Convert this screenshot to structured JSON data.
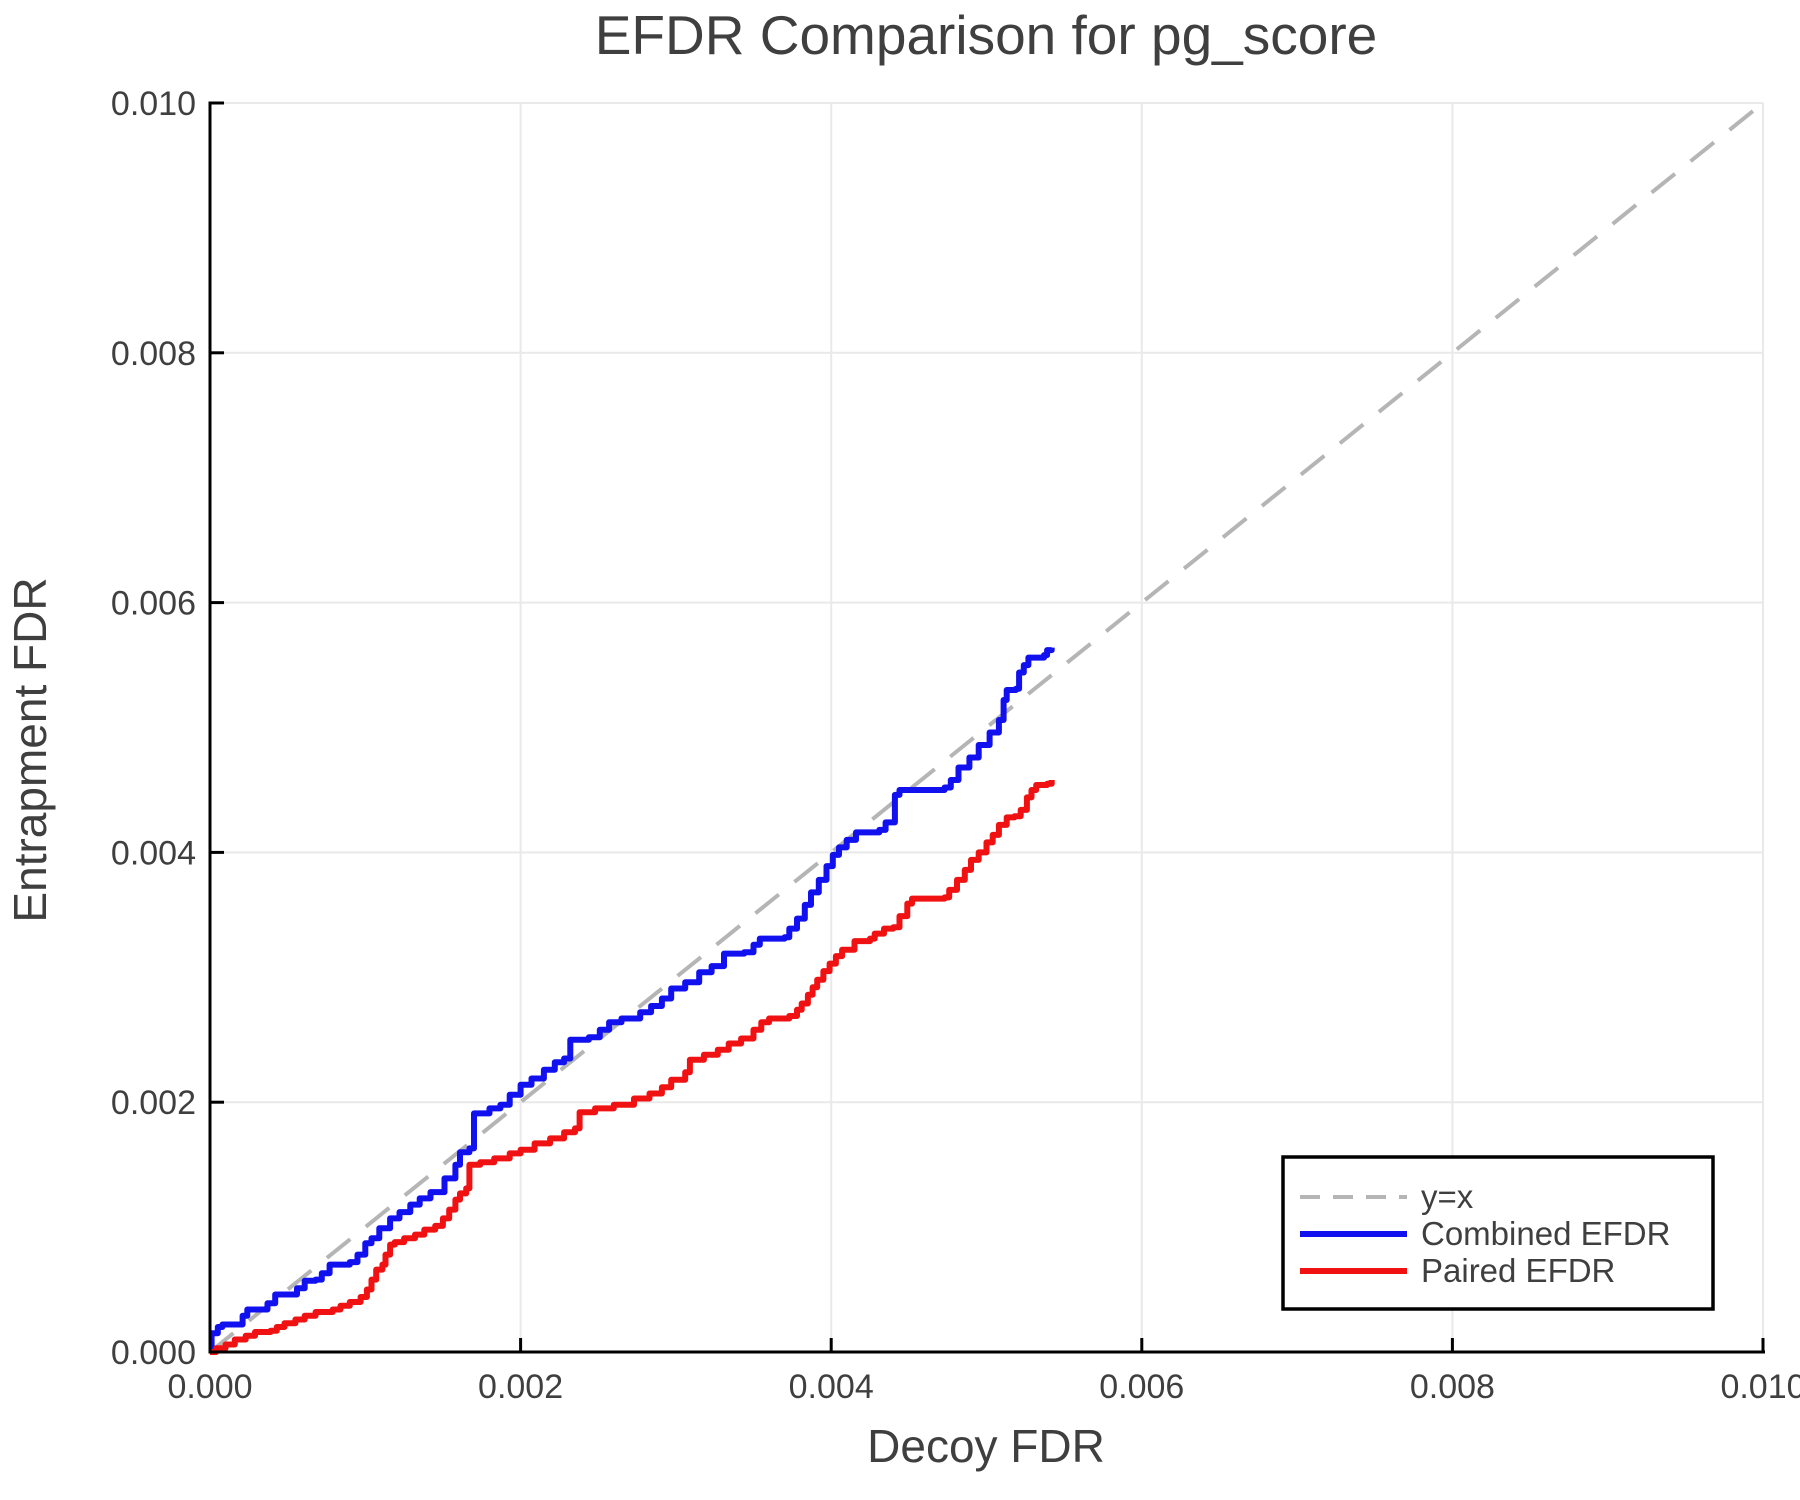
{
  "title": "EFDR Comparison for pg_score",
  "chart_data": {
    "type": "line",
    "title": "EFDR Comparison for pg_score",
    "xlabel": "Decoy FDR",
    "ylabel": "Entrapment FDR",
    "xlim": [
      0.0,
      0.01
    ],
    "ylim": [
      0.0,
      0.01
    ],
    "grid": true,
    "background": "#ffffff",
    "grid_color": "#e9e9e9",
    "spine_color": "#000000",
    "text_color": "#3f3f3f",
    "x_ticks": [
      0.0,
      0.002,
      0.004,
      0.006,
      0.008,
      0.01
    ],
    "x_tick_labels": [
      "0.000",
      "0.002",
      "0.004",
      "0.006",
      "0.008",
      "0.010"
    ],
    "y_ticks": [
      0.0,
      0.002,
      0.004,
      0.006,
      0.008,
      0.01
    ],
    "y_tick_labels": [
      "0.000",
      "0.002",
      "0.004",
      "0.006",
      "0.008",
      "0.010"
    ],
    "legend_position": "lower right",
    "series": [
      {
        "name": "y=x",
        "color": "#b5b5b5",
        "style": "dashed",
        "drawstyle": "line",
        "width": 4,
        "x": [
          0.0,
          0.01
        ],
        "y": [
          0.0,
          0.01
        ]
      },
      {
        "name": "Combined EFDR",
        "color": "#1111f0",
        "style": "solid",
        "drawstyle": "steps-post",
        "width": 6,
        "x": [
          0.0,
          1e-05,
          5e-05,
          8e-05,
          0.00018,
          0.00021,
          0.00024,
          0.00035,
          0.00037,
          0.00042,
          0.00051,
          0.00056,
          0.00061,
          0.00068,
          0.00072,
          0.00077,
          0.0009,
          0.00095,
          0.001,
          0.00104,
          0.00109,
          0.00116,
          0.00122,
          0.00129,
          0.00135,
          0.00142,
          0.00151,
          0.00158,
          0.00161,
          0.00167,
          0.0017,
          0.0018,
          0.00187,
          0.00193,
          0.002,
          0.00207,
          0.00215,
          0.00222,
          0.00228,
          0.00232,
          0.00244,
          0.00251,
          0.00257,
          0.00265,
          0.00277,
          0.00284,
          0.00291,
          0.00297,
          0.00306,
          0.00315,
          0.00323,
          0.00331,
          0.00344,
          0.0035,
          0.00354,
          0.0037,
          0.00373,
          0.00378,
          0.00383,
          0.00387,
          0.00392,
          0.00397,
          0.00401,
          0.00405,
          0.0041,
          0.00416,
          0.00431,
          0.00435,
          0.00441,
          0.00444,
          0.00473,
          0.00477,
          0.00482,
          0.00489,
          0.00495,
          0.00502,
          0.00508,
          0.00511,
          0.00513,
          0.00519,
          0.00521,
          0.00524,
          0.00527,
          0.00537,
          0.00539,
          0.00542
        ],
        "y": [
          0.0,
          0.00015,
          0.0002,
          0.00022,
          0.00022,
          0.00029,
          0.00034,
          0.00034,
          0.00039,
          0.00046,
          0.00046,
          0.00051,
          0.00057,
          0.00058,
          0.00063,
          0.0007,
          0.00072,
          0.00078,
          0.00087,
          0.00091,
          0.00099,
          0.00107,
          0.00112,
          0.00118,
          0.00123,
          0.00128,
          0.00139,
          0.0015,
          0.0016,
          0.00163,
          0.00191,
          0.00195,
          0.00198,
          0.00206,
          0.00214,
          0.00219,
          0.00226,
          0.00232,
          0.00235,
          0.0025,
          0.00252,
          0.00258,
          0.00264,
          0.00267,
          0.00272,
          0.00277,
          0.00283,
          0.00291,
          0.00296,
          0.00304,
          0.00309,
          0.00319,
          0.0032,
          0.00326,
          0.00331,
          0.00332,
          0.00339,
          0.00347,
          0.00358,
          0.00368,
          0.00378,
          0.00389,
          0.00398,
          0.00404,
          0.0041,
          0.00416,
          0.00418,
          0.00424,
          0.00446,
          0.0045,
          0.00452,
          0.00458,
          0.00468,
          0.00476,
          0.00486,
          0.00496,
          0.00506,
          0.00522,
          0.0053,
          0.00531,
          0.00544,
          0.0055,
          0.00556,
          0.00558,
          0.00562,
          0.00564
        ]
      },
      {
        "name": "Paired EFDR",
        "color": "#f01212",
        "style": "solid",
        "drawstyle": "steps-post",
        "width": 6,
        "x": [
          0.0,
          4e-05,
          0.0001,
          0.00016,
          0.00023,
          0.00029,
          0.00039,
          0.00043,
          0.00048,
          0.00055,
          0.00061,
          0.00068,
          0.00079,
          0.00084,
          0.0009,
          0.00097,
          0.00101,
          0.00104,
          0.00107,
          0.00111,
          0.00113,
          0.00116,
          0.00119,
          0.00125,
          0.00132,
          0.00138,
          0.00145,
          0.0015,
          0.00154,
          0.00158,
          0.00161,
          0.00165,
          0.00167,
          0.00174,
          0.00183,
          0.00193,
          0.002,
          0.00209,
          0.00219,
          0.00228,
          0.00235,
          0.00238,
          0.00248,
          0.0026,
          0.00273,
          0.00283,
          0.00291,
          0.00297,
          0.00306,
          0.00309,
          0.00318,
          0.00327,
          0.00334,
          0.00342,
          0.0035,
          0.00355,
          0.0036,
          0.00373,
          0.00378,
          0.00381,
          0.00385,
          0.00388,
          0.00391,
          0.00395,
          0.00399,
          0.00403,
          0.00407,
          0.00415,
          0.00425,
          0.00428,
          0.00434,
          0.0044,
          0.00444,
          0.00449,
          0.00452,
          0.00473,
          0.00476,
          0.00481,
          0.00486,
          0.0049,
          0.00495,
          0.005,
          0.00504,
          0.00508,
          0.00513,
          0.00518,
          0.00522,
          0.00526,
          0.00529,
          0.00532,
          0.00539,
          0.00542
        ],
        "y": [
          0.0,
          3e-05,
          6e-05,
          0.0001,
          0.00013,
          0.00016,
          0.00017,
          0.0002,
          0.00023,
          0.00026,
          0.00029,
          0.00032,
          0.00034,
          0.00037,
          0.0004,
          0.00044,
          0.0005,
          0.00058,
          0.00066,
          0.0007,
          0.00078,
          0.00086,
          0.00088,
          0.00091,
          0.00094,
          0.00098,
          0.00101,
          0.00107,
          0.00114,
          0.00122,
          0.00127,
          0.00131,
          0.0015,
          0.00152,
          0.00155,
          0.00159,
          0.00162,
          0.00167,
          0.00171,
          0.00176,
          0.00179,
          0.00192,
          0.00195,
          0.00198,
          0.00203,
          0.00207,
          0.00212,
          0.00218,
          0.00224,
          0.00234,
          0.00238,
          0.00242,
          0.00247,
          0.00251,
          0.00258,
          0.00264,
          0.00267,
          0.00269,
          0.00274,
          0.00279,
          0.00286,
          0.00292,
          0.00298,
          0.00305,
          0.00311,
          0.00317,
          0.00322,
          0.00329,
          0.00331,
          0.00335,
          0.00339,
          0.0034,
          0.00349,
          0.00359,
          0.00363,
          0.00364,
          0.0037,
          0.00378,
          0.00386,
          0.00394,
          0.004,
          0.00408,
          0.00414,
          0.00422,
          0.00428,
          0.00429,
          0.00434,
          0.00444,
          0.0045,
          0.00454,
          0.00455,
          0.00458
        ]
      }
    ],
    "legend": {
      "entries": [
        "y=x",
        "Combined EFDR",
        "Paired EFDR"
      ],
      "border_color": "#000000",
      "background": "#ffffff"
    }
  }
}
